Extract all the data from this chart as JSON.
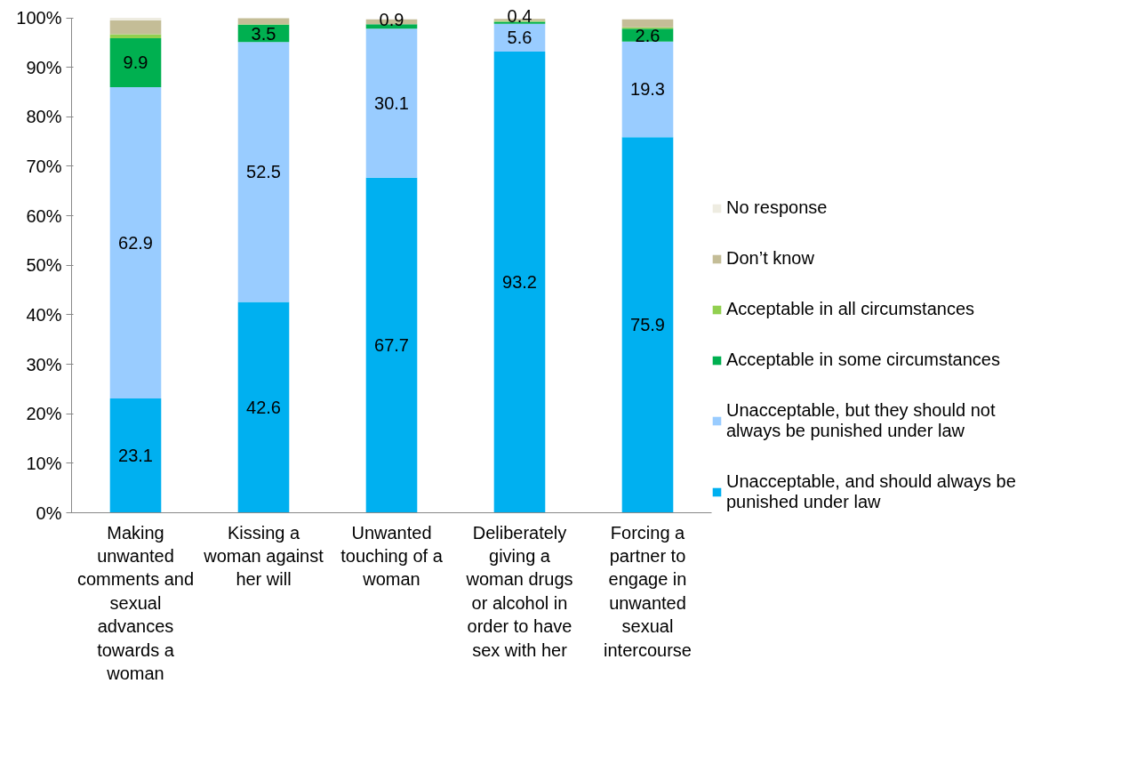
{
  "chart_data": {
    "type": "bar",
    "stacked": true,
    "legend": "right",
    "grid": false,
    "categories": [
      "Making unwanted comments and sexual advances towards a woman",
      "Kissing a woman against her will",
      "Unwanted touching of a woman",
      "Deliberately giving a woman drugs or alcohol in order to have sex with her",
      "Forcing a partner to engage in unwanted sexual intercourse"
    ],
    "ylim": [
      0,
      100
    ],
    "yticks": [
      {
        "value": 0,
        "label": "0%"
      },
      {
        "value": 10,
        "label": "10%"
      },
      {
        "value": 20,
        "label": "20%"
      },
      {
        "value": 30,
        "label": "30%"
      },
      {
        "value": 40,
        "label": "40%"
      },
      {
        "value": 50,
        "label": "50%"
      },
      {
        "value": 60,
        "label": "60%"
      },
      {
        "value": 70,
        "label": "70%"
      },
      {
        "value": 80,
        "label": "80%"
      },
      {
        "value": 90,
        "label": "90%"
      },
      {
        "value": 100,
        "label": "100%"
      }
    ],
    "series": [
      {
        "name": "Unacceptable, and should always be punished under law",
        "color": "#00b0f0",
        "values": [
          23.1,
          42.6,
          67.7,
          93.2,
          75.9
        ],
        "value_labels": [
          "23.1",
          "42.6",
          "67.7",
          "93.2",
          "75.9"
        ]
      },
      {
        "name": "Unacceptable, but they should not always be punished under law",
        "color": "#99ccff",
        "values": [
          62.9,
          52.5,
          30.1,
          5.6,
          19.3
        ],
        "value_labels": [
          "62.9",
          "52.5",
          "30.1",
          "5.6",
          "19.3"
        ]
      },
      {
        "name": "Acceptable in some circumstances",
        "color": "#00b050",
        "values": [
          9.9,
          3.5,
          0.9,
          0.4,
          2.6
        ],
        "value_labels": [
          "9.9",
          "3.5",
          "0.9",
          "0.4",
          "2.6"
        ]
      },
      {
        "name": "Acceptable in all circumstances",
        "color": "#92d050",
        "values": [
          0.8,
          0.1,
          null,
          0.2,
          0.3
        ]
      },
      {
        "name": "Don’t know",
        "color": "#c4bd97",
        "values": [
          2.8,
          1.2,
          1.0,
          0.4,
          1.6
        ]
      },
      {
        "name": "No response",
        "color": "#eeece1",
        "values": [
          0.5,
          null,
          null,
          null,
          null
        ]
      }
    ]
  }
}
